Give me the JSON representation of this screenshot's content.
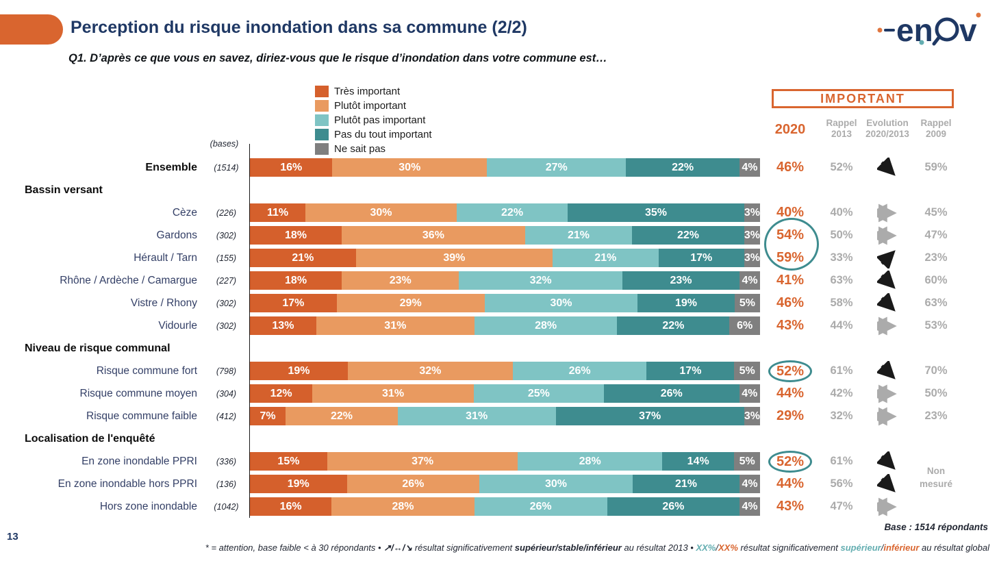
{
  "header": {
    "title": "Perception du risque inondation dans sa commune (2/2)",
    "question": "Q1. D’après ce que vous en savez, diriez-vous que le risque d’inondation dans votre commune est…",
    "logo_text": "enov"
  },
  "colors": {
    "accent_orange": "#D9652F",
    "navy": "#1F3864",
    "gray_text": "#ABABAB",
    "circle_teal": "#3E8C8F",
    "series": [
      "#D5602C",
      "#E99A60",
      "#7FC4C4",
      "#3E8C8F",
      "#7F7F7F"
    ]
  },
  "legend": [
    {
      "label": "Très important",
      "color": "#D5602C"
    },
    {
      "label": "Plutôt important",
      "color": "#E99A60"
    },
    {
      "label": "Plutôt pas important",
      "color": "#7FC4C4"
    },
    {
      "label": "Pas du tout important",
      "color": "#3E8C8F"
    },
    {
      "label": "Ne sait pas",
      "color": "#7F7F7F"
    }
  ],
  "table": {
    "important_label": "IMPORTANT",
    "bases_label": "(bases)",
    "columns": {
      "y2020": "2020",
      "r2013": "Rappel\n2013",
      "evolution": "Evolution\n2020/2013",
      "r2009": "Rappel\n2009"
    },
    "non_mesure": "Non mesuré",
    "evolution_glyphs": {
      "up": "up-right-arrow",
      "down": "down-right-arrow",
      "stable": "left-right-arrow"
    },
    "rows": [
      {
        "type": "data",
        "label": "Ensemble",
        "bold": true,
        "base": "(1514)",
        "values": [
          16,
          30,
          27,
          22,
          4
        ],
        "v2020": "46%",
        "r2013": "52%",
        "evo": "down",
        "r2009": "59%",
        "circle": "none"
      },
      {
        "type": "group",
        "label": "Bassin versant"
      },
      {
        "type": "data",
        "label": "Cèze",
        "base": "(226)",
        "values": [
          11,
          30,
          22,
          35,
          3
        ],
        "v2020": "40%",
        "r2013": "40%",
        "evo": "stable",
        "r2009": "45%",
        "circle": "none"
      },
      {
        "type": "data",
        "label": "Gardons",
        "base": "(302)",
        "values": [
          18,
          36,
          21,
          22,
          3
        ],
        "v2020": "54%",
        "r2013": "50%",
        "evo": "stable",
        "r2009": "47%",
        "circle": "span2"
      },
      {
        "type": "data",
        "label": "Hérault / Tarn",
        "base": "(155)",
        "values": [
          21,
          39,
          21,
          17,
          3
        ],
        "v2020": "59%",
        "r2013": "33%",
        "evo": "up",
        "r2009": "23%",
        "circle": "none"
      },
      {
        "type": "data",
        "label": "Rhône / Ardèche / Camargue",
        "base": "(227)",
        "values": [
          18,
          23,
          32,
          23,
          4
        ],
        "v2020": "41%",
        "r2013": "63%",
        "evo": "down",
        "r2009": "60%",
        "circle": "none"
      },
      {
        "type": "data",
        "label": "Vistre / Rhony",
        "base": "(302)",
        "values": [
          17,
          29,
          30,
          19,
          5
        ],
        "v2020": "46%",
        "r2013": "58%",
        "evo": "down",
        "r2009": "63%",
        "circle": "none"
      },
      {
        "type": "data",
        "label": "Vidourle",
        "base": "(302)",
        "values": [
          13,
          31,
          28,
          22,
          6
        ],
        "v2020": "43%",
        "r2013": "44%",
        "evo": "stable",
        "r2009": "53%",
        "circle": "none"
      },
      {
        "type": "group",
        "label": "Niveau de risque communal"
      },
      {
        "type": "data",
        "label": "Risque commune fort",
        "base": "(798)",
        "values": [
          19,
          32,
          26,
          17,
          5
        ],
        "v2020": "52%",
        "r2013": "61%",
        "evo": "down",
        "r2009": "70%",
        "circle": "single"
      },
      {
        "type": "data",
        "label": "Risque commune moyen",
        "base": "(304)",
        "values": [
          12,
          31,
          25,
          26,
          4
        ],
        "v2020": "44%",
        "r2013": "42%",
        "evo": "stable",
        "r2009": "50%",
        "circle": "none"
      },
      {
        "type": "data",
        "label": "Risque commune faible",
        "base": "(412)",
        "values": [
          7,
          22,
          31,
          37,
          3
        ],
        "v2020": "29%",
        "r2013": "32%",
        "evo": "stable",
        "r2009": "23%",
        "circle": "none"
      },
      {
        "type": "group",
        "label": "Localisation de l'enquêté"
      },
      {
        "type": "data",
        "label": "En zone inondable PPRI",
        "base": "(336)",
        "values": [
          15,
          37,
          28,
          14,
          5
        ],
        "v2020": "52%",
        "r2013": "61%",
        "evo": "down",
        "r2009": "",
        "circle": "single"
      },
      {
        "type": "data",
        "label": "En zone inondable hors PPRI",
        "base": "(136)",
        "values": [
          19,
          26,
          30,
          21,
          4
        ],
        "v2020": "44%",
        "r2013": "56%",
        "evo": "down",
        "r2009": "",
        "circle": "none"
      },
      {
        "type": "data",
        "label": "Hors zone inondable",
        "base": "(1042)",
        "values": [
          16,
          28,
          26,
          26,
          4
        ],
        "v2020": "43%",
        "r2013": "47%",
        "evo": "stable",
        "r2009": "",
        "circle": "none"
      }
    ]
  },
  "footer": {
    "page_number": "13",
    "base_note": "Base : 1514 répondants",
    "note_parts": [
      {
        "t": "* = attention, base faible < à 30 répondants • ",
        "s": "plain"
      },
      {
        "t": "↗/↔/↘",
        "s": "bold"
      },
      {
        "t": " résultat significativement ",
        "s": "plain"
      },
      {
        "t": "supérieur/stable/inférieur",
        "s": "bold"
      },
      {
        "t": " au résultat 2013 • ",
        "s": "plain"
      },
      {
        "t": "XX%",
        "s": "teal"
      },
      {
        "t": "/",
        "s": "plain"
      },
      {
        "t": "XX%",
        "s": "orange"
      },
      {
        "t": " résultat significativement ",
        "s": "plain"
      },
      {
        "t": "supérieur",
        "s": "teal"
      },
      {
        "t": "/",
        "s": "plain"
      },
      {
        "t": "inférieur",
        "s": "orange"
      },
      {
        "t": " au résultat global",
        "s": "plain"
      }
    ]
  },
  "chart_data": {
    "type": "bar",
    "orientation": "horizontal-stacked",
    "title": "Perception du risque inondation dans sa commune (2/2)",
    "question": "Q1. D’après ce que vous en savez, diriez-vous que le risque d’inondation dans votre commune est…",
    "legend_position": "top",
    "unit": "%",
    "xlim": [
      0,
      100
    ],
    "groups": [
      "Bassin versant",
      "Niveau de risque communal",
      "Localisation de l'enquêté"
    ],
    "categories": [
      "Ensemble",
      "Cèze",
      "Gardons",
      "Hérault / Tarn",
      "Rhône / Ardèche / Camargue",
      "Vistre / Rhony",
      "Vidourle",
      "Risque commune fort",
      "Risque commune moyen",
      "Risque commune faible",
      "En zone inondable PPRI",
      "En zone inondable hors PPRI",
      "Hors zone inondable"
    ],
    "bases": [
      1514,
      226,
      302,
      155,
      227,
      302,
      302,
      798,
      304,
      412,
      336,
      136,
      1042
    ],
    "series": [
      {
        "name": "Très important",
        "values": [
          16,
          11,
          18,
          21,
          18,
          17,
          13,
          19,
          12,
          7,
          15,
          19,
          16
        ]
      },
      {
        "name": "Plutôt important",
        "values": [
          30,
          30,
          36,
          39,
          23,
          29,
          31,
          32,
          31,
          22,
          37,
          26,
          28
        ]
      },
      {
        "name": "Plutôt pas important",
        "values": [
          27,
          22,
          21,
          21,
          32,
          30,
          28,
          26,
          25,
          31,
          28,
          30,
          26
        ]
      },
      {
        "name": "Pas du tout important",
        "values": [
          22,
          35,
          22,
          17,
          23,
          19,
          22,
          17,
          26,
          37,
          14,
          21,
          26
        ]
      },
      {
        "name": "Ne sait pas",
        "values": [
          4,
          3,
          3,
          3,
          4,
          5,
          6,
          5,
          4,
          3,
          5,
          4,
          4
        ]
      }
    ],
    "important_2020": [
      46,
      40,
      54,
      59,
      41,
      46,
      43,
      52,
      44,
      29,
      52,
      44,
      43
    ],
    "rappel_2013": [
      52,
      40,
      50,
      33,
      63,
      58,
      44,
      61,
      42,
      32,
      61,
      56,
      47
    ],
    "evolution_2020_2013": [
      "down",
      "stable",
      "stable",
      "up",
      "down",
      "down",
      "stable",
      "down",
      "stable",
      "stable",
      "down",
      "down",
      "stable"
    ],
    "rappel_2009": [
      59,
      45,
      47,
      23,
      60,
      63,
      53,
      70,
      50,
      23,
      null,
      null,
      null
    ],
    "rappel_2009_note": "Non mesuré",
    "circled_2020": [
      "Gardons",
      "Hérault / Tarn",
      "Risque commune fort",
      "En zone inondable PPRI"
    ]
  }
}
